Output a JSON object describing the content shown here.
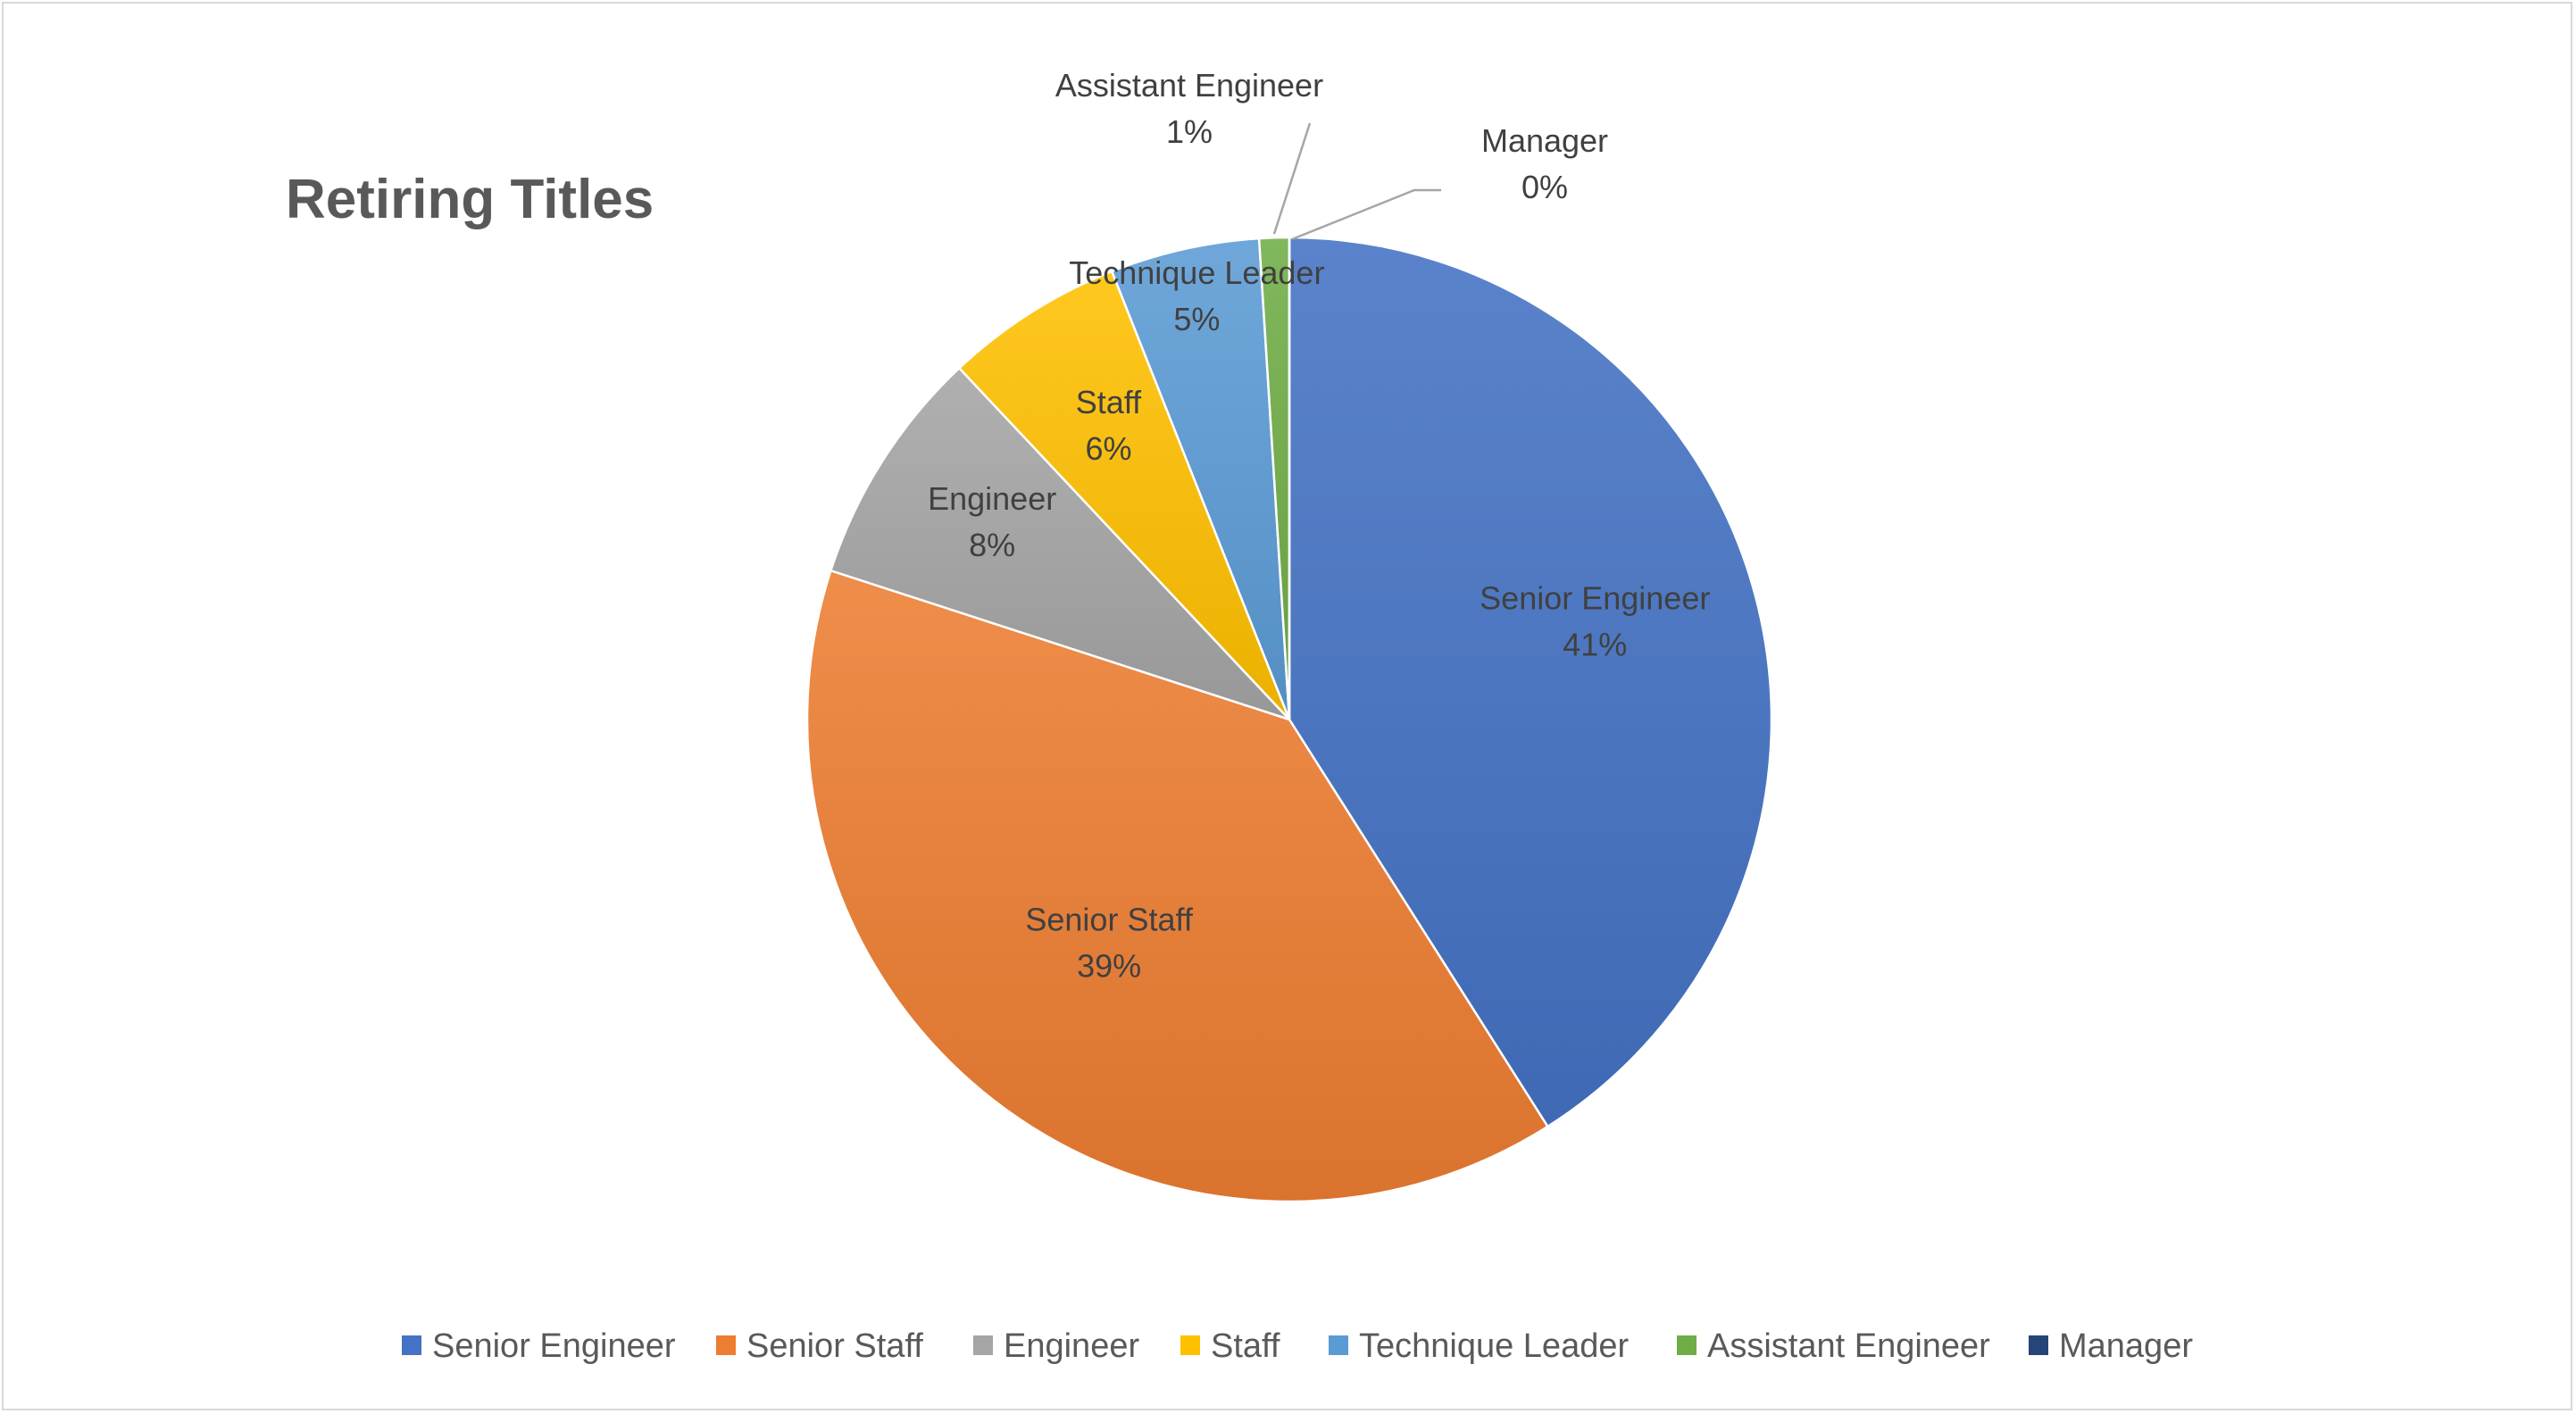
{
  "chart_data": {
    "type": "pie",
    "title": "Retiring Titles",
    "categories": [
      "Senior Engineer",
      "Senior Staff",
      "Engineer",
      "Staff",
      "Technique Leader",
      "Assistant Engineer",
      "Manager"
    ],
    "values": [
      41,
      39,
      8,
      6,
      5,
      1,
      0
    ],
    "data_labels": [
      "41%",
      "39%",
      "8%",
      "6%",
      "5%",
      "1%",
      "0%"
    ],
    "colors": [
      "#4472C4",
      "#ED7D31",
      "#A5A5A5",
      "#FFC000",
      "#5B9BD5",
      "#70AD47",
      "#264478"
    ],
    "legend_position": "bottom"
  }
}
